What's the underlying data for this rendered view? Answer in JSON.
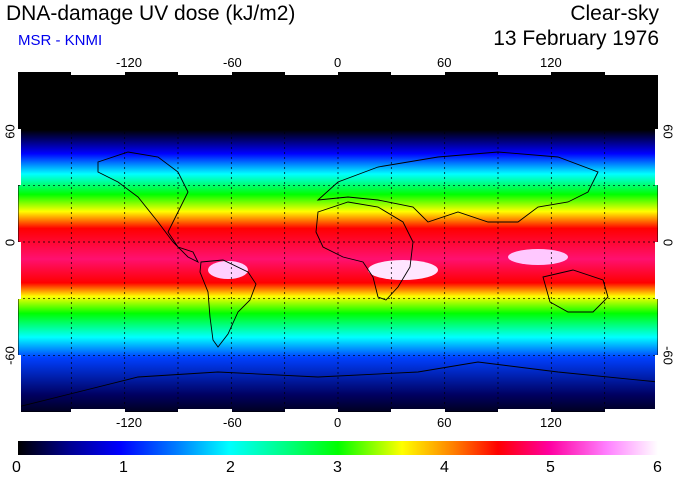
{
  "header": {
    "title": "DNA-damage UV dose (kJ/m2)",
    "subtitle": "MSR - KNMI",
    "sky": "Clear-sky",
    "date": "13 February 1976"
  },
  "map": {
    "projection": "equirectangular",
    "lon_range": [
      -180,
      180
    ],
    "lat_range": [
      -90,
      90
    ],
    "lon_ticks": [
      "-120",
      "-60",
      "0",
      "60",
      "120"
    ],
    "lat_ticks": [
      "60",
      "0",
      "-60"
    ],
    "gridlines": "dotted every 30 degrees",
    "coastlines": true
  },
  "colorbar": {
    "min": 0,
    "max": 6,
    "labels": [
      "0",
      "1",
      "2",
      "3",
      "4",
      "5",
      "6"
    ],
    "colors": [
      "#000000",
      "#0000ff",
      "#00ffff",
      "#00ff00",
      "#ffff00",
      "#ff0000",
      "#ff00ff",
      "#ffffff"
    ]
  }
}
